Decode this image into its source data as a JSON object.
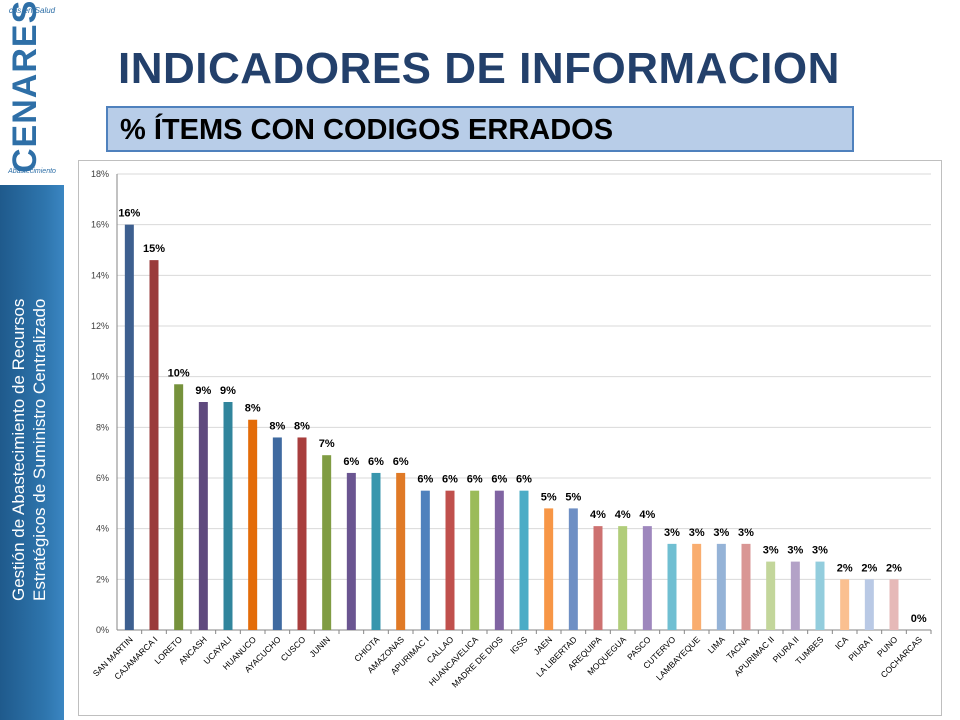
{
  "logo": {
    "top_text": "cos en Salud",
    "main_text": "CENARES",
    "bottom_text": "Abastecimiento"
  },
  "sidebar": {
    "line1": "Gestión de Abastecimiento de Recursos",
    "line2": "Estratégicos de Suministro Centralizado"
  },
  "title": "INDICADORES DE INFORMACION",
  "subtitle": "% ÍTEMS CON CODIGOS ERRADOS",
  "chart_data": {
    "type": "bar",
    "ylim": [
      0,
      18
    ],
    "yticks": [
      "0%",
      "2%",
      "4%",
      "6%",
      "8%",
      "10%",
      "12%",
      "14%",
      "16%",
      "18%"
    ],
    "grid": true,
    "categories": [
      "SAN MARTIN",
      "CAJAMARCA I",
      "LORETO",
      "ANCASH",
      "UCAYALI",
      "HUANUCO",
      "AYACUCHO",
      "CUSCO",
      "JUNIN",
      "",
      "CHIOTA",
      "AMAZONAS",
      "APURIMAC I",
      "CALLAO",
      "HUANCAVELICA",
      "MADRE DE DIOS",
      "IGSS",
      "JAEN",
      "LA LIBERTAD",
      "AREQUIPA",
      "MOQUEGUA",
      "PASCO",
      "CUTERVO",
      "LAMBAYEQUE",
      "LIMA",
      "TACNA",
      "APURIMAC II",
      "PIURA II",
      "TUMBES",
      "ICA",
      "PIURA I",
      "PUNO",
      "COCHARCAS"
    ],
    "values": [
      16.0,
      14.6,
      9.7,
      9.0,
      9.0,
      8.3,
      7.6,
      7.6,
      6.9,
      6.2,
      6.2,
      6.2,
      5.5,
      5.5,
      5.5,
      5.5,
      5.5,
      4.8,
      4.8,
      4.1,
      4.1,
      4.1,
      3.4,
      3.4,
      3.4,
      3.4,
      2.7,
      2.7,
      2.7,
      2.0,
      2.0,
      2.0,
      0.0
    ],
    "labels": [
      "16%",
      "15%",
      "10%",
      "9%",
      "9%",
      "8%",
      "8%",
      "8%",
      "7%",
      "6%",
      "6%",
      "6%",
      "6%",
      "6%",
      "6%",
      "6%",
      "6%",
      "5%",
      "5%",
      "4%",
      "4%",
      "4%",
      "3%",
      "3%",
      "3%",
      "3%",
      "3%",
      "3%",
      "3%",
      "2%",
      "2%",
      "2%",
      "0%"
    ],
    "colors": [
      "#3d5f8f",
      "#9a3b3b",
      "#76923c",
      "#5f4a7e",
      "#31859c",
      "#e36c09",
      "#3f6aa0",
      "#a83e3d",
      "#809c43",
      "#6a5591",
      "#3896ad",
      "#e07a26",
      "#4f81bd",
      "#c0504d",
      "#9bbb59",
      "#8064a2",
      "#4bacc6",
      "#f79646",
      "#6e8fc4",
      "#cd7170",
      "#b1cd7a",
      "#9e87bd",
      "#70bfd2",
      "#f9ad6f",
      "#95b3d7",
      "#d99694",
      "#c3d69b",
      "#b3a2c7",
      "#93cddd",
      "#fac090",
      "#b9c9e5",
      "#e6b9b8",
      "#d7e4bd"
    ]
  }
}
